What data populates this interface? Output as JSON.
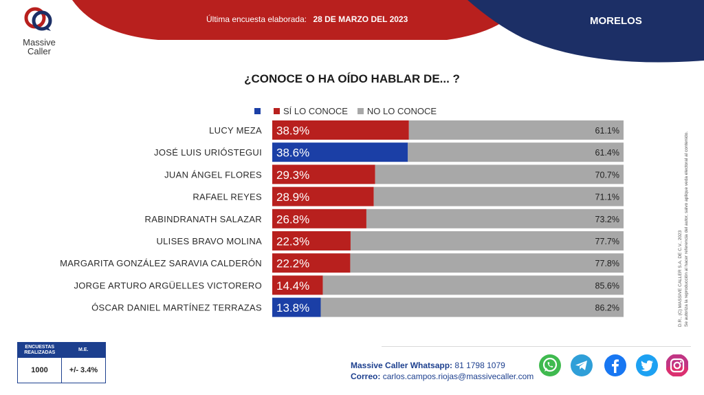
{
  "header": {
    "brand_line1": "Massive",
    "brand_line2": "Caller",
    "survey_label": "Última encuesta elaborada:",
    "survey_date": "28 DE MARZO DEL 2023",
    "region": "MORELOS"
  },
  "question": "¿CONOCE O HA OÍDO HABLAR DE... ?",
  "legend": [
    {
      "label": "",
      "color": "#1b3fa6"
    },
    {
      "label": "SÍ LO CONOCE",
      "color": "#b8201e"
    },
    {
      "label": "NO LO CONOCE",
      "color": "#a8a8a8"
    }
  ],
  "chart_data": {
    "type": "bar",
    "orientation": "horizontal",
    "stacked": true,
    "categories": [
      "LUCY MEZA",
      "JOSÉ LUIS URIÓSTEGUI",
      "JUAN ÁNGEL FLORES",
      "RAFAEL REYES",
      "RABINDRANATH SALAZAR",
      "ULISES BRAVO MOLINA",
      "MARGARITA GONZÁLEZ SARAVIA CALDERÓN",
      "JORGE ARTURO ARGÜELLES VICTORERO",
      "ÓSCAR DANIEL MARTÍNEZ TERRAZAS"
    ],
    "series": [
      {
        "name": "SÍ LO CONOCE",
        "values": [
          38.9,
          38.6,
          29.3,
          28.9,
          26.8,
          22.3,
          22.2,
          14.4,
          13.8
        ],
        "labels": [
          "38.9%",
          "38.6%",
          "29.3%",
          "28.9%",
          "26.8%",
          "22.3%",
          "22.2%",
          "14.4%",
          "13.8%"
        ]
      },
      {
        "name": "NO LO CONOCE",
        "values": [
          61.1,
          61.4,
          70.7,
          71.1,
          73.2,
          77.7,
          77.8,
          85.6,
          86.2
        ],
        "labels": [
          "61.1%",
          "61.4%",
          "70.7%",
          "71.1%",
          "73.2%",
          "77.7%",
          "77.8%",
          "85.6%",
          "86.2%"
        ]
      }
    ],
    "bar_colors": [
      "#b8201e",
      "#1b3fa6",
      "#b8201e",
      "#b8201e",
      "#b8201e",
      "#b8201e",
      "#b8201e",
      "#b8201e",
      "#1b3fa6"
    ],
    "rest_color": "#a8a8a8",
    "xlim": [
      0,
      100
    ]
  },
  "copyright": {
    "line1": "D.R., (C) MASSIVE CALLER S.A. DE C.V., 2023",
    "line2": "Se autoriza la reproducción al hacer referencia del autor, salvo aplique veda electoral al contenido."
  },
  "stats": {
    "col1_header": "ENCUESTAS REALIZADAS",
    "col2_header": "M.E.",
    "col1_value": "1000",
    "col2_value": "+/- 3.4%"
  },
  "contact": {
    "whatsapp_label": "Massive Caller Whatsapp:",
    "whatsapp_number": "81 1798 1079",
    "email_label": "Correo:",
    "email": "carlos.campos.riojas@massivecaller.com"
  },
  "social_icons": [
    "whatsapp-icon",
    "telegram-icon",
    "facebook-icon",
    "twitter-icon",
    "instagram-icon"
  ]
}
